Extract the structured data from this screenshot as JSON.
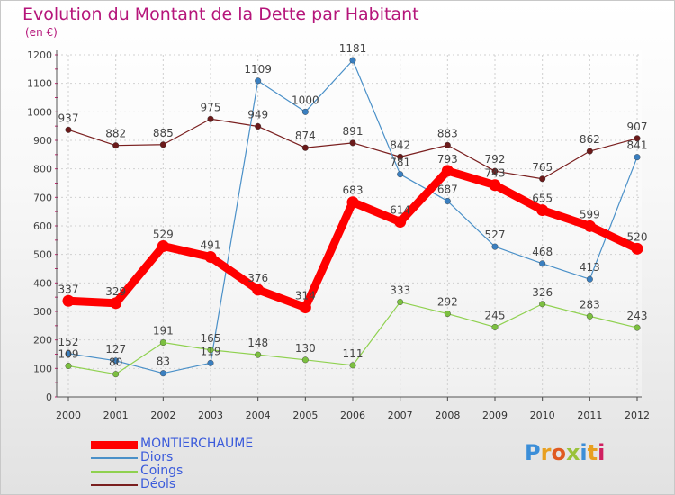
{
  "title": "Evolution du Montant de la Dette par Habitant",
  "unit": "(en €)",
  "logo": {
    "text": "Proxiti",
    "colors": [
      "#3b8ed8",
      "#e8a020",
      "#e05a20",
      "#9ac23a",
      "#3b8ed8",
      "#e8a020",
      "#d02060"
    ]
  },
  "chart_data": {
    "type": "line",
    "x": [
      "2000",
      "2001",
      "2002",
      "2003",
      "2004",
      "2005",
      "2006",
      "2007",
      "2008",
      "2009",
      "2010",
      "2011",
      "2012"
    ],
    "ylim": [
      0,
      1200
    ],
    "yticks": [
      0,
      100,
      200,
      300,
      400,
      500,
      600,
      700,
      800,
      900,
      1000,
      1100,
      1200
    ],
    "series": [
      {
        "name": "Déols",
        "color": "#7a1f1f",
        "values": [
          937,
          882,
          885,
          975,
          949,
          874,
          891,
          842,
          883,
          792,
          765,
          862,
          907
        ]
      },
      {
        "name": "Diors",
        "color": "#4a90c8",
        "values": [
          152,
          127,
          83,
          119,
          1109,
          1000,
          1181,
          781,
          687,
          527,
          468,
          413,
          841
        ]
      },
      {
        "name": "Coings",
        "color": "#8fd14f",
        "values": [
          109,
          80,
          191,
          165,
          148,
          130,
          111,
          333,
          292,
          245,
          326,
          283,
          243
        ]
      },
      {
        "name": "MONTIERCHAUME",
        "color": "#ff0000",
        "values": [
          337,
          329,
          529,
          491,
          376,
          314,
          683,
          614,
          793,
          743,
          655,
          599,
          520
        ]
      }
    ],
    "legend": [
      {
        "label": "MONTIERCHAUME",
        "color": "#ff0000",
        "text_color": "#3b5bdb"
      },
      {
        "label": "Diors",
        "color": "#4a90c8",
        "text_color": "#3b5bdb"
      },
      {
        "label": "Coings",
        "color": "#8fd14f",
        "text_color": "#3b5bdb"
      },
      {
        "label": "Déols",
        "color": "#7a1f1f",
        "text_color": "#3b5bdb"
      }
    ],
    "grid": true,
    "legend_position": "bottom-left"
  }
}
